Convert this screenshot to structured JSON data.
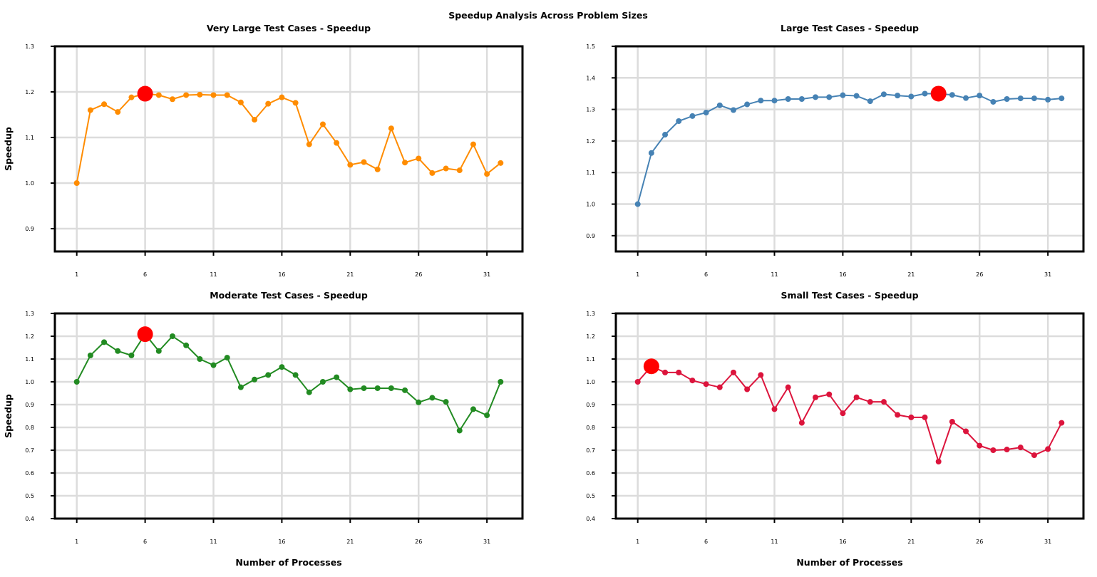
{
  "figure": {
    "title": "Speedup Analysis Across Problem Sizes"
  },
  "chart_data": [
    {
      "type": "line",
      "title": "Very Large Test Cases - Speedup",
      "xlabel": "",
      "ylabel": "Speedup",
      "color": "#ff8c00",
      "highlight_color": "#ff0000",
      "x": [
        1,
        2,
        3,
        4,
        5,
        6,
        7,
        8,
        9,
        10,
        11,
        12,
        13,
        14,
        15,
        16,
        17,
        18,
        19,
        20,
        21,
        22,
        23,
        24,
        25,
        26,
        27,
        28,
        29,
        30,
        31,
        32
      ],
      "values": [
        1.0,
        1.16,
        1.173,
        1.156,
        1.188,
        1.196,
        1.193,
        1.184,
        1.193,
        1.194,
        1.193,
        1.193,
        1.177,
        1.139,
        1.174,
        1.188,
        1.176,
        1.085,
        1.129,
        1.088,
        1.04,
        1.046,
        1.03,
        1.12,
        1.045,
        1.054,
        1.022,
        1.032,
        1.028,
        1.085,
        1.02,
        1.044
      ],
      "highlight": {
        "x": 6,
        "y": 1.196
      },
      "xticks": [
        1,
        6,
        11,
        16,
        21,
        26,
        31
      ],
      "yticks": [
        0.9,
        1.0,
        1.1,
        1.2,
        1.3
      ],
      "xlim": [
        -0.6,
        33.6
      ],
      "ylim": [
        0.85,
        1.3
      ],
      "grid": true
    },
    {
      "type": "line",
      "title": "Large Test Cases - Speedup",
      "xlabel": "",
      "ylabel": "",
      "color": "#4682b4",
      "highlight_color": "#ff0000",
      "x": [
        1,
        2,
        3,
        4,
        5,
        6,
        7,
        8,
        9,
        10,
        11,
        12,
        13,
        14,
        15,
        16,
        17,
        18,
        19,
        20,
        21,
        22,
        23,
        24,
        25,
        26,
        27,
        28,
        29,
        30,
        31,
        32
      ],
      "values": [
        1.0,
        1.162,
        1.22,
        1.263,
        1.279,
        1.29,
        1.313,
        1.298,
        1.316,
        1.328,
        1.328,
        1.333,
        1.333,
        1.339,
        1.339,
        1.345,
        1.343,
        1.326,
        1.348,
        1.344,
        1.341,
        1.35,
        1.35,
        1.346,
        1.336,
        1.344,
        1.324,
        1.333,
        1.335,
        1.335,
        1.331,
        1.335
      ],
      "highlight": {
        "x": 23,
        "y": 1.35
      },
      "xticks": [
        1,
        6,
        11,
        16,
        21,
        26,
        31
      ],
      "yticks": [
        0.9,
        1.0,
        1.1,
        1.2,
        1.3,
        1.4,
        1.5
      ],
      "xlim": [
        -0.6,
        33.6
      ],
      "ylim": [
        0.85,
        1.5
      ],
      "grid": true
    },
    {
      "type": "line",
      "title": "Moderate Test Cases - Speedup",
      "xlabel": "Number of Processes",
      "ylabel": "Speedup",
      "color": "#228b22",
      "highlight_color": "#ff0000",
      "x": [
        1,
        2,
        3,
        4,
        5,
        6,
        7,
        8,
        9,
        10,
        11,
        12,
        13,
        14,
        15,
        16,
        17,
        18,
        19,
        20,
        21,
        22,
        23,
        24,
        25,
        26,
        27,
        28,
        29,
        30,
        31,
        32
      ],
      "values": [
        1.0,
        1.116,
        1.174,
        1.135,
        1.116,
        1.209,
        1.135,
        1.2,
        1.16,
        1.1,
        1.073,
        1.106,
        0.976,
        1.01,
        1.03,
        1.065,
        1.03,
        0.954,
        1.0,
        1.02,
        0.967,
        0.972,
        0.972,
        0.972,
        0.963,
        0.91,
        0.93,
        0.912,
        0.786,
        0.88,
        0.853,
        1.0
      ],
      "highlight": {
        "x": 6,
        "y": 1.209
      },
      "xticks": [
        1,
        6,
        11,
        16,
        21,
        26,
        31
      ],
      "yticks": [
        0.4,
        0.5,
        0.6,
        0.7,
        0.8,
        0.9,
        1.0,
        1.1,
        1.2,
        1.3
      ],
      "xlim": [
        -0.6,
        33.6
      ],
      "ylim": [
        0.4,
        1.3
      ],
      "grid": true
    },
    {
      "type": "line",
      "title": "Small Test Cases - Speedup",
      "xlabel": "Number of Processes",
      "ylabel": "",
      "color": "#dc143c",
      "highlight_color": "#ff0000",
      "x": [
        1,
        2,
        3,
        4,
        5,
        6,
        7,
        8,
        9,
        10,
        11,
        12,
        13,
        14,
        15,
        16,
        17,
        18,
        19,
        20,
        21,
        22,
        23,
        24,
        25,
        26,
        27,
        28,
        29,
        30,
        31,
        32
      ],
      "values": [
        1.0,
        1.068,
        1.041,
        1.041,
        1.006,
        0.99,
        0.976,
        1.041,
        0.967,
        1.03,
        0.88,
        0.976,
        0.82,
        0.932,
        0.945,
        0.862,
        0.932,
        0.912,
        0.912,
        0.855,
        0.844,
        0.844,
        0.65,
        0.825,
        0.783,
        0.72,
        0.7,
        0.703,
        0.712,
        0.678,
        0.705,
        0.82
      ],
      "highlight": {
        "x": 2,
        "y": 1.068
      },
      "xticks": [
        1,
        6,
        11,
        16,
        21,
        26,
        31
      ],
      "yticks": [
        0.4,
        0.5,
        0.6,
        0.7,
        0.8,
        0.9,
        1.0,
        1.1,
        1.2,
        1.3
      ],
      "xlim": [
        -0.6,
        33.6
      ],
      "ylim": [
        0.4,
        1.3
      ],
      "grid": true
    }
  ]
}
